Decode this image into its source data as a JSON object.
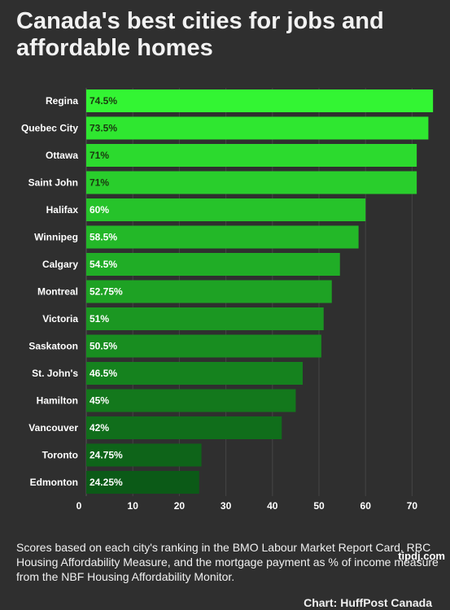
{
  "title": "Canada's best cities for jobs and affordable homes",
  "footnote": "Scores based on each city's ranking in the BMO Labour Market Report Card, RBC Housing Affordability Measure, and the mortgage payment as % of income measure from the NBF Housing Affordability Monitor.",
  "credit": "Chart: HuffPost Canada",
  "watermark": "tipdj.com",
  "chart_data": {
    "type": "bar",
    "orientation": "horizontal",
    "categories": [
      "Regina",
      "Quebec City",
      "Ottawa",
      "Saint John",
      "Halifax",
      "Winnipeg",
      "Calgary",
      "Montreal",
      "Victoria",
      "Saskatoon",
      "St. John's",
      "Hamilton",
      "Vancouver",
      "Toronto",
      "Edmonton"
    ],
    "values": [
      74.5,
      73.5,
      71,
      71,
      60,
      58.5,
      54.5,
      52.75,
      51,
      50.5,
      46.5,
      45,
      42,
      24.75,
      24.25
    ],
    "data_labels": [
      "74.5%",
      "73.5%",
      "71%",
      "71%",
      "60%",
      "58.5%",
      "54.5%",
      "52.75%",
      "51%",
      "50.5%",
      "46.5%",
      "45%",
      "42%",
      "24.75%",
      "24.25%"
    ],
    "xlim": [
      0,
      75
    ],
    "x_ticks": [
      0,
      10,
      20,
      30,
      40,
      50,
      60,
      70
    ],
    "grid": true,
    "colors": {
      "bar_bright": "#33f533",
      "bar_dark": "#0b5a17",
      "label_dark": "#1a3a10",
      "label_light": "#ffffff",
      "grid": "#454545"
    }
  }
}
